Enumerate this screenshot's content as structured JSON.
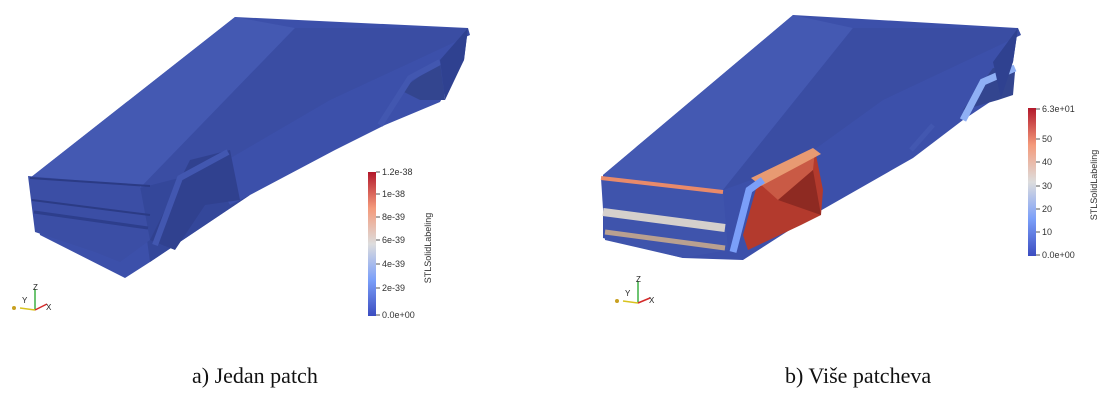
{
  "panels": [
    {
      "caption": "a) Jedan patch",
      "colorbar": {
        "title": "STLSolidLabeling",
        "ticks": [
          "1.2e-38",
          "1e-38",
          "8e-39",
          "6e-39",
          "4e-39",
          "2e-39",
          "0.0e+00"
        ]
      },
      "axes": {
        "z": "Z",
        "y": "Y",
        "x": "X"
      }
    },
    {
      "caption": "b) Više patcheva",
      "colorbar": {
        "title": "STLSolidLabeling",
        "ticks": [
          "6.3e+01",
          "50",
          "40",
          "30",
          "20",
          "10",
          "0.0e+00"
        ]
      },
      "axes": {
        "z": "Z",
        "y": "Y",
        "x": "X"
      }
    }
  ],
  "colors": {
    "body_blue": "#3a4fa8",
    "colormap_high": "#b2182b",
    "colormap_mid": "#dddddd",
    "colormap_low": "#3b4cc0"
  }
}
